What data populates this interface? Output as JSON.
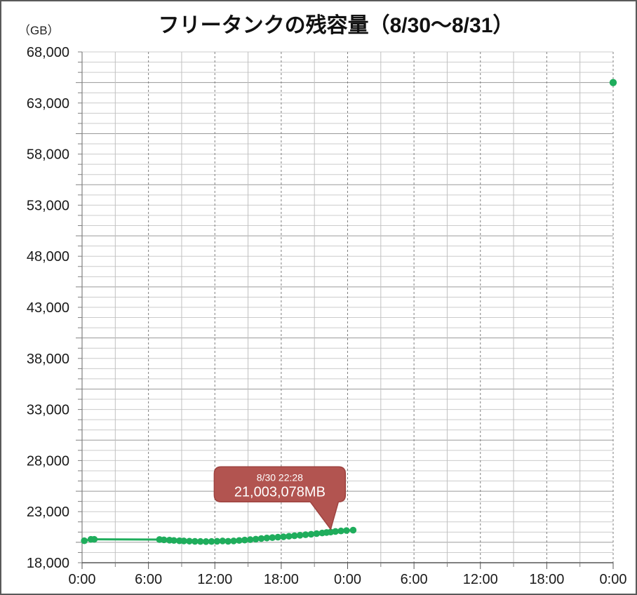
{
  "page": {
    "background": "#ffffff",
    "frame_border_color": "#5a5a5a"
  },
  "header": {
    "title": "フリータンクの残容量（8/30～8/31）",
    "unit_label": "（GB）"
  },
  "chart_data": {
    "type": "line",
    "title": "フリータンクの残容量（8/30～8/31）",
    "ylabel": "（GB）",
    "xlabel": "",
    "grid": true,
    "legend": "none",
    "xlim_hours": [
      0,
      48
    ],
    "ylim": [
      18000,
      68000
    ],
    "y_major_step": 5000,
    "y_minor_step": 1000,
    "x_gridline_step_hours": 3,
    "x_major_step_hours": 6,
    "x_tick_labels": [
      "0:00",
      "6:00",
      "12:00",
      "18:00",
      "0:00",
      "6:00",
      "12:00",
      "18:00",
      "0:00"
    ],
    "x_tick_hours": [
      0,
      6,
      12,
      18,
      24,
      30,
      36,
      42,
      48
    ],
    "y_tick_labels": [
      "68,000",
      "63,000",
      "58,000",
      "53,000",
      "48,000",
      "43,000",
      "38,000",
      "33,000",
      "28,000",
      "23,000",
      "18,000"
    ],
    "series": {
      "color": "#1fad5c",
      "points_h_gb": [
        [
          0.2,
          20150
        ],
        [
          0.8,
          20290
        ],
        [
          1.1,
          20290
        ],
        [
          7.0,
          20270
        ],
        [
          7.4,
          20240
        ],
        [
          7.9,
          20210
        ],
        [
          8.3,
          20180
        ],
        [
          8.8,
          20150
        ],
        [
          9.2,
          20130
        ],
        [
          9.7,
          20110
        ],
        [
          10.2,
          20090
        ],
        [
          10.7,
          20080
        ],
        [
          11.2,
          20070
        ],
        [
          11.7,
          20080
        ],
        [
          12.2,
          20100
        ],
        [
          12.7,
          20130
        ],
        [
          13.2,
          20100
        ],
        [
          13.7,
          20130
        ],
        [
          14.2,
          20180
        ],
        [
          14.7,
          20220
        ],
        [
          15.2,
          20260
        ],
        [
          15.7,
          20310
        ],
        [
          16.2,
          20370
        ],
        [
          16.7,
          20420
        ],
        [
          17.2,
          20460
        ],
        [
          17.7,
          20500
        ],
        [
          18.2,
          20540
        ],
        [
          18.7,
          20590
        ],
        [
          19.2,
          20640
        ],
        [
          19.7,
          20690
        ],
        [
          20.2,
          20740
        ],
        [
          20.7,
          20790
        ],
        [
          21.2,
          20850
        ],
        [
          21.7,
          20910
        ],
        [
          22.1,
          20960
        ],
        [
          22.47,
          21003
        ],
        [
          22.9,
          21060
        ],
        [
          23.4,
          21110
        ],
        [
          23.9,
          21150
        ],
        [
          24.5,
          21190
        ]
      ],
      "isolated_point_h_gb": [
        48,
        65000
      ]
    },
    "annotation": {
      "line1": "8/30 22:28",
      "line2": "21,003,078MB",
      "target_h_gb": [
        22.47,
        21003
      ],
      "fill": "#b25450",
      "stroke": "#9e4340",
      "text_color": "#ffffff"
    },
    "colors": {
      "series_green": "#1fad5c",
      "grid_minor_h": "#cccccc",
      "grid_major_h": "#9a9a9a",
      "grid_minor_v": "#c0c0c0",
      "grid_major_v_dashed": "#7f7f7f",
      "axis_x": "#555555",
      "axis_y": "#808080",
      "tick": "#808080"
    }
  }
}
